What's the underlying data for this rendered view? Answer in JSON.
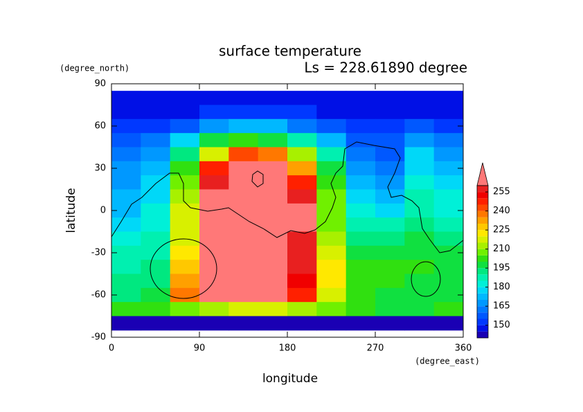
{
  "chart_data": {
    "type": "contour",
    "title": "surface temperature",
    "subtitle": "Ls = 228.61890 degree",
    "x_label": "longitude",
    "y_label": "latitude",
    "x_unit": "(degree_east)",
    "y_unit": "(degree_north)",
    "x": [
      15,
      45,
      75,
      105,
      135,
      165,
      195,
      225,
      255,
      285,
      315,
      345
    ],
    "y": [
      80,
      70,
      60,
      50,
      40,
      30,
      20,
      10,
      0,
      -10,
      -20,
      -30,
      -40,
      -50,
      -60,
      -70,
      -80
    ],
    "values": [
      [
        147,
        147,
        147,
        147,
        147,
        147,
        147,
        147,
        147,
        147,
        147,
        147
      ],
      [
        148,
        148,
        149,
        150,
        151,
        151,
        150,
        149,
        148,
        148,
        149,
        148
      ],
      [
        152,
        152,
        158,
        168,
        172,
        170,
        163,
        156,
        152,
        152,
        155,
        152
      ],
      [
        158,
        160,
        175,
        195,
        200,
        198,
        185,
        170,
        158,
        155,
        165,
        160
      ],
      [
        162,
        165,
        190,
        215,
        240,
        235,
        210,
        185,
        163,
        158,
        175,
        168
      ],
      [
        165,
        170,
        200,
        245,
        265,
        265,
        230,
        195,
        165,
        160,
        178,
        172
      ],
      [
        168,
        175,
        205,
        255,
        265,
        265,
        245,
        200,
        170,
        165,
        180,
        175
      ],
      [
        170,
        178,
        210,
        262,
        268,
        268,
        255,
        205,
        175,
        172,
        185,
        180
      ],
      [
        172,
        180,
        215,
        265,
        270,
        270,
        260,
        205,
        180,
        178,
        188,
        183
      ],
      [
        178,
        183,
        215,
        265,
        270,
        270,
        260,
        205,
        185,
        185,
        192,
        188
      ],
      [
        182,
        185,
        218,
        265,
        270,
        270,
        258,
        210,
        190,
        192,
        198,
        192
      ],
      [
        185,
        188,
        222,
        265,
        270,
        270,
        258,
        215,
        195,
        198,
        198,
        195
      ],
      [
        188,
        190,
        225,
        265,
        270,
        270,
        255,
        220,
        200,
        200,
        200,
        198
      ],
      [
        190,
        192,
        230,
        265,
        270,
        268,
        250,
        220,
        202,
        200,
        198,
        196
      ],
      [
        192,
        195,
        235,
        262,
        265,
        265,
        245,
        215,
        200,
        198,
        196,
        195
      ],
      [
        200,
        200,
        205,
        210,
        215,
        215,
        210,
        205,
        200,
        198,
        198,
        200
      ],
      [
        143,
        143,
        143,
        143,
        143,
        143,
        143,
        143,
        143,
        143,
        143,
        143
      ]
    ],
    "xlim": [
      0,
      360
    ],
    "ylim": [
      -90,
      90
    ],
    "xticks": [
      0,
      90,
      180,
      270,
      360
    ],
    "yticks": [
      -90,
      -60,
      -30,
      0,
      30,
      60,
      90
    ],
    "colorbar": {
      "levels": [
        140,
        145,
        150,
        155,
        160,
        165,
        170,
        175,
        180,
        185,
        190,
        195,
        200,
        205,
        210,
        215,
        220,
        225,
        230,
        235,
        240,
        245,
        250,
        255,
        260
      ],
      "colors": [
        "#1a00b4",
        "#0010e6",
        "#0038ff",
        "#0058ff",
        "#0078ff",
        "#0098ff",
        "#00b8ff",
        "#00d8f8",
        "#00f0d8",
        "#00f0b0",
        "#00e880",
        "#10e040",
        "#30e010",
        "#70f000",
        "#a8f000",
        "#d8f000",
        "#ffe800",
        "#ffc800",
        "#ffa000",
        "#ff7800",
        "#ff4800",
        "#ff2000",
        "#f00000",
        "#e82020"
      ],
      "extend_color": "#ff7878",
      "ticks": [
        150,
        165,
        180,
        195,
        210,
        225,
        240,
        255
      ]
    }
  }
}
